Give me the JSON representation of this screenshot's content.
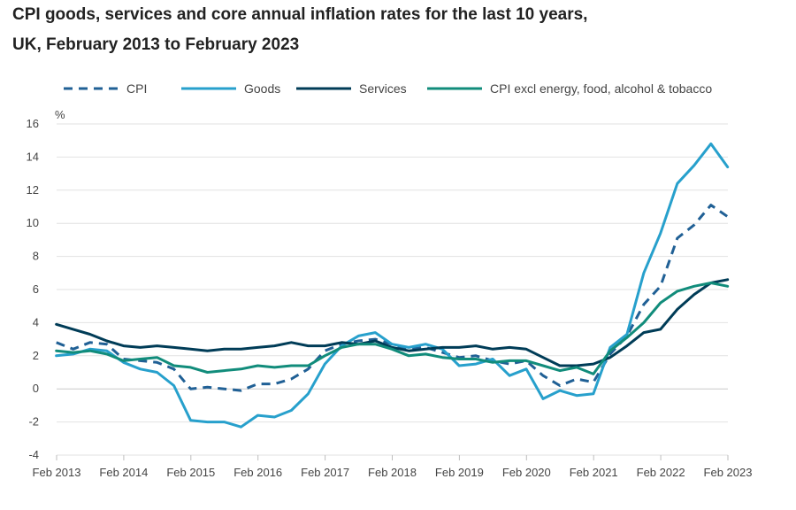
{
  "chart_data": {
    "type": "line",
    "title_line1": "CPI goods, services and core annual inflation rates for the last 10 years,",
    "title_line2": "UK, February 2013 to February 2023",
    "ylabel": "%",
    "xlabel": "",
    "ylim": [
      -4,
      16
    ],
    "yticks": [
      16,
      14,
      12,
      10,
      8,
      6,
      4,
      2,
      0,
      -2,
      -4
    ],
    "xlim": [
      2013.0833,
      2023.0833
    ],
    "xticks": [
      {
        "label": "Feb 2013",
        "x": 2013.0833
      },
      {
        "label": "Feb 2014",
        "x": 2014.0833
      },
      {
        "label": "Feb 2015",
        "x": 2015.0833
      },
      {
        "label": "Feb 2016",
        "x": 2016.0833
      },
      {
        "label": "Feb 2017",
        "x": 2017.0833
      },
      {
        "label": "Feb 2018",
        "x": 2018.0833
      },
      {
        "label": "Feb 2019",
        "x": 2019.0833
      },
      {
        "label": "Feb 2020",
        "x": 2020.0833
      },
      {
        "label": "Feb 2021",
        "x": 2021.0833
      },
      {
        "label": "Feb 2022",
        "x": 2022.0833
      },
      {
        "label": "Feb 2023",
        "x": 2023.0833
      }
    ],
    "grid": true,
    "legend_position": "top",
    "series": [
      {
        "name": "CPI",
        "color": "#206095",
        "dash": "dashed",
        "points": [
          [
            2013.08,
            2.8
          ],
          [
            2013.33,
            2.4
          ],
          [
            2013.58,
            2.8
          ],
          [
            2013.83,
            2.7
          ],
          [
            2014.08,
            1.8
          ],
          [
            2014.33,
            1.7
          ],
          [
            2014.58,
            1.6
          ],
          [
            2014.83,
            1.2
          ],
          [
            2015.08,
            0.0
          ],
          [
            2015.33,
            0.1
          ],
          [
            2015.58,
            0.0
          ],
          [
            2015.83,
            -0.1
          ],
          [
            2016.08,
            0.3
          ],
          [
            2016.33,
            0.3
          ],
          [
            2016.58,
            0.6
          ],
          [
            2016.83,
            1.2
          ],
          [
            2017.08,
            2.3
          ],
          [
            2017.33,
            2.7
          ],
          [
            2017.58,
            2.9
          ],
          [
            2017.83,
            3.0
          ],
          [
            2018.08,
            2.7
          ],
          [
            2018.33,
            2.4
          ],
          [
            2018.58,
            2.5
          ],
          [
            2018.83,
            2.2
          ],
          [
            2019.08,
            1.9
          ],
          [
            2019.33,
            2.0
          ],
          [
            2019.58,
            1.7
          ],
          [
            2019.83,
            1.5
          ],
          [
            2020.08,
            1.7
          ],
          [
            2020.33,
            0.8
          ],
          [
            2020.58,
            0.2
          ],
          [
            2020.83,
            0.6
          ],
          [
            2021.08,
            0.4
          ],
          [
            2021.33,
            2.1
          ],
          [
            2021.58,
            3.2
          ],
          [
            2021.83,
            5.1
          ],
          [
            2022.08,
            6.2
          ],
          [
            2022.33,
            9.1
          ],
          [
            2022.58,
            9.9
          ],
          [
            2022.83,
            11.1
          ],
          [
            2023.08,
            10.4
          ]
        ]
      },
      {
        "name": "Goods",
        "color": "#27a0cc",
        "dash": "solid",
        "points": [
          [
            2013.08,
            2.0
          ],
          [
            2013.33,
            2.1
          ],
          [
            2013.58,
            2.4
          ],
          [
            2013.83,
            2.3
          ],
          [
            2014.08,
            1.6
          ],
          [
            2014.33,
            1.2
          ],
          [
            2014.58,
            1.0
          ],
          [
            2014.83,
            0.2
          ],
          [
            2015.08,
            -1.9
          ],
          [
            2015.33,
            -2.0
          ],
          [
            2015.58,
            -2.0
          ],
          [
            2015.83,
            -2.3
          ],
          [
            2016.08,
            -1.6
          ],
          [
            2016.33,
            -1.7
          ],
          [
            2016.58,
            -1.3
          ],
          [
            2016.83,
            -0.3
          ],
          [
            2017.08,
            1.5
          ],
          [
            2017.33,
            2.6
          ],
          [
            2017.58,
            3.2
          ],
          [
            2017.83,
            3.4
          ],
          [
            2018.08,
            2.7
          ],
          [
            2018.33,
            2.5
          ],
          [
            2018.58,
            2.7
          ],
          [
            2018.83,
            2.4
          ],
          [
            2019.08,
            1.4
          ],
          [
            2019.33,
            1.5
          ],
          [
            2019.58,
            1.8
          ],
          [
            2019.83,
            0.8
          ],
          [
            2020.08,
            1.2
          ],
          [
            2020.33,
            -0.6
          ],
          [
            2020.58,
            -0.1
          ],
          [
            2020.83,
            -0.4
          ],
          [
            2021.08,
            -0.3
          ],
          [
            2021.33,
            2.5
          ],
          [
            2021.58,
            3.3
          ],
          [
            2021.83,
            7.0
          ],
          [
            2022.08,
            9.4
          ],
          [
            2022.33,
            12.4
          ],
          [
            2022.58,
            13.5
          ],
          [
            2022.83,
            14.8
          ],
          [
            2023.08,
            13.4
          ]
        ]
      },
      {
        "name": "Services",
        "color": "#003c57",
        "dash": "solid",
        "points": [
          [
            2013.08,
            3.9
          ],
          [
            2013.33,
            3.6
          ],
          [
            2013.58,
            3.3
          ],
          [
            2013.83,
            2.9
          ],
          [
            2014.08,
            2.6
          ],
          [
            2014.33,
            2.5
          ],
          [
            2014.58,
            2.6
          ],
          [
            2014.83,
            2.5
          ],
          [
            2015.08,
            2.4
          ],
          [
            2015.33,
            2.3
          ],
          [
            2015.58,
            2.4
          ],
          [
            2015.83,
            2.4
          ],
          [
            2016.08,
            2.5
          ],
          [
            2016.33,
            2.6
          ],
          [
            2016.58,
            2.8
          ],
          [
            2016.83,
            2.6
          ],
          [
            2017.08,
            2.6
          ],
          [
            2017.33,
            2.8
          ],
          [
            2017.58,
            2.7
          ],
          [
            2017.83,
            2.9
          ],
          [
            2018.08,
            2.5
          ],
          [
            2018.33,
            2.3
          ],
          [
            2018.58,
            2.4
          ],
          [
            2018.83,
            2.5
          ],
          [
            2019.08,
            2.5
          ],
          [
            2019.33,
            2.6
          ],
          [
            2019.58,
            2.4
          ],
          [
            2019.83,
            2.5
          ],
          [
            2020.08,
            2.4
          ],
          [
            2020.33,
            1.9
          ],
          [
            2020.58,
            1.4
          ],
          [
            2020.83,
            1.4
          ],
          [
            2021.08,
            1.5
          ],
          [
            2021.33,
            1.9
          ],
          [
            2021.58,
            2.6
          ],
          [
            2021.83,
            3.4
          ],
          [
            2022.08,
            3.6
          ],
          [
            2022.33,
            4.8
          ],
          [
            2022.58,
            5.7
          ],
          [
            2022.83,
            6.4
          ],
          [
            2023.08,
            6.6
          ]
        ]
      },
      {
        "name": "CPI excl energy, food, alcohol & tobacco",
        "color": "#118c7b",
        "dash": "solid",
        "points": [
          [
            2013.08,
            2.3
          ],
          [
            2013.33,
            2.2
          ],
          [
            2013.58,
            2.3
          ],
          [
            2013.83,
            2.1
          ],
          [
            2014.08,
            1.7
          ],
          [
            2014.33,
            1.8
          ],
          [
            2014.58,
            1.9
          ],
          [
            2014.83,
            1.4
          ],
          [
            2015.08,
            1.3
          ],
          [
            2015.33,
            1.0
          ],
          [
            2015.58,
            1.1
          ],
          [
            2015.83,
            1.2
          ],
          [
            2016.08,
            1.4
          ],
          [
            2016.33,
            1.3
          ],
          [
            2016.58,
            1.4
          ],
          [
            2016.83,
            1.4
          ],
          [
            2017.08,
            2.0
          ],
          [
            2017.33,
            2.5
          ],
          [
            2017.58,
            2.7
          ],
          [
            2017.83,
            2.7
          ],
          [
            2018.08,
            2.4
          ],
          [
            2018.33,
            2.0
          ],
          [
            2018.58,
            2.1
          ],
          [
            2018.83,
            1.9
          ],
          [
            2019.08,
            1.8
          ],
          [
            2019.33,
            1.8
          ],
          [
            2019.58,
            1.6
          ],
          [
            2019.83,
            1.7
          ],
          [
            2020.08,
            1.7
          ],
          [
            2020.33,
            1.4
          ],
          [
            2020.58,
            1.1
          ],
          [
            2020.83,
            1.3
          ],
          [
            2021.08,
            0.9
          ],
          [
            2021.33,
            2.3
          ],
          [
            2021.58,
            3.1
          ],
          [
            2021.83,
            4.0
          ],
          [
            2022.08,
            5.2
          ],
          [
            2022.33,
            5.9
          ],
          [
            2022.58,
            6.2
          ],
          [
            2022.83,
            6.4
          ],
          [
            2023.08,
            6.2
          ]
        ]
      }
    ]
  }
}
